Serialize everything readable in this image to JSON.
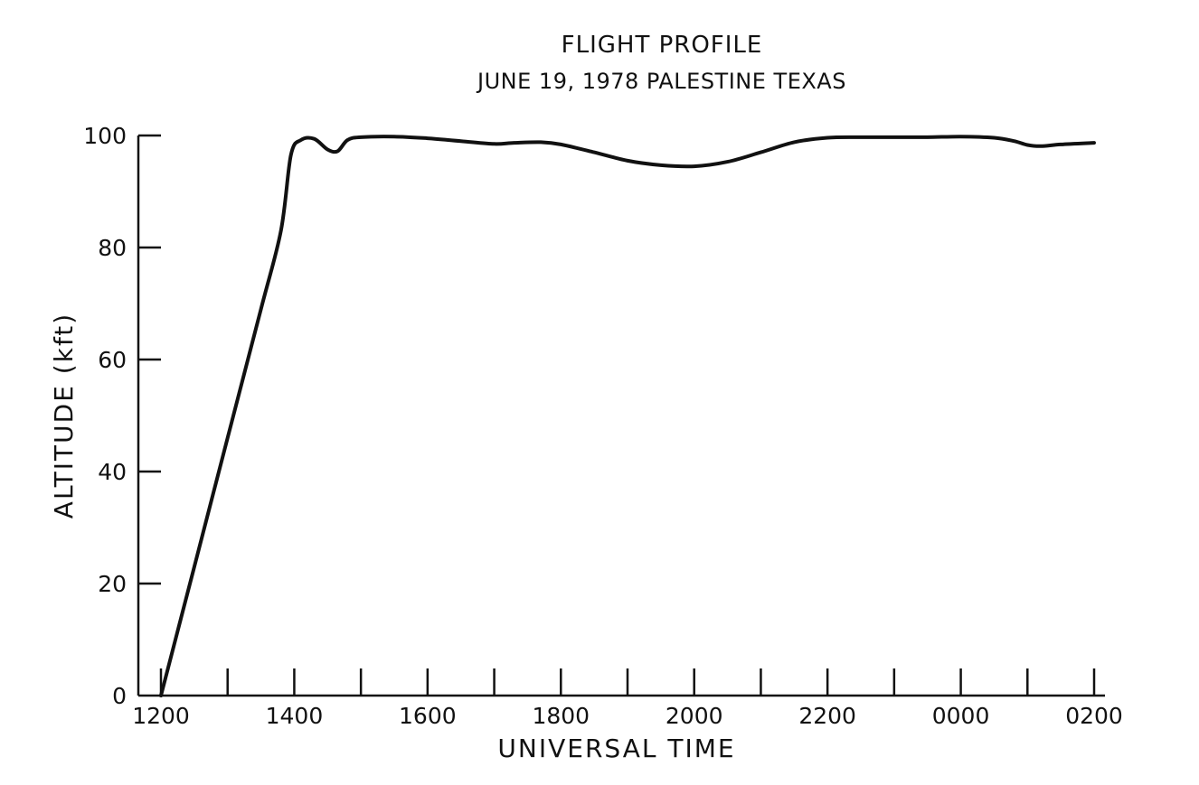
{
  "chart_data": {
    "type": "line",
    "title": "FLIGHT PROFILE",
    "subtitle": "JUNE 19, 1978 PALESTINE TEXAS",
    "xlabel": "UNIVERSAL TIME",
    "ylabel": "ALTITUDE (kft)",
    "ylim": [
      0,
      100
    ],
    "yticks": [
      0,
      20,
      40,
      60,
      80,
      100
    ],
    "xlim": [
      12,
      26
    ],
    "xticks": [
      {
        "value": 12,
        "label": "1200"
      },
      {
        "value": 13,
        "label": ""
      },
      {
        "value": 14,
        "label": "1400"
      },
      {
        "value": 15,
        "label": ""
      },
      {
        "value": 16,
        "label": "1600"
      },
      {
        "value": 17,
        "label": ""
      },
      {
        "value": 18,
        "label": "1800"
      },
      {
        "value": 19,
        "label": ""
      },
      {
        "value": 20,
        "label": "2000"
      },
      {
        "value": 21,
        "label": ""
      },
      {
        "value": 22,
        "label": "2200"
      },
      {
        "value": 23,
        "label": ""
      },
      {
        "value": 24,
        "label": "0000"
      },
      {
        "value": 25,
        "label": ""
      },
      {
        "value": 26,
        "label": "0200"
      }
    ],
    "grid": false,
    "legend": "none",
    "series": [
      {
        "x": [
          12.0,
          12.5,
          13.0,
          13.5,
          13.8,
          13.95,
          14.1,
          14.3,
          14.5,
          14.65,
          14.8,
          15.0,
          15.5,
          16.0,
          16.5,
          17.0,
          17.3,
          17.7,
          18.0,
          18.5,
          19.0,
          19.5,
          20.0,
          20.5,
          21.0,
          21.5,
          22.0,
          22.5,
          23.0,
          23.5,
          24.0,
          24.5,
          24.8,
          25.0,
          25.2,
          25.5,
          26.0
        ],
        "y": [
          0,
          23,
          46,
          69,
          83,
          96.5,
          99.2,
          99.4,
          97.5,
          97.2,
          99.2,
          99.7,
          99.8,
          99.5,
          99,
          98.5,
          98.7,
          98.8,
          98.4,
          97,
          95.5,
          94.7,
          94.5,
          95.3,
          97,
          98.8,
          99.6,
          99.7,
          99.7,
          99.7,
          99.8,
          99.6,
          99.0,
          98.3,
          98.1,
          98.4,
          98.7
        ]
      }
    ]
  }
}
